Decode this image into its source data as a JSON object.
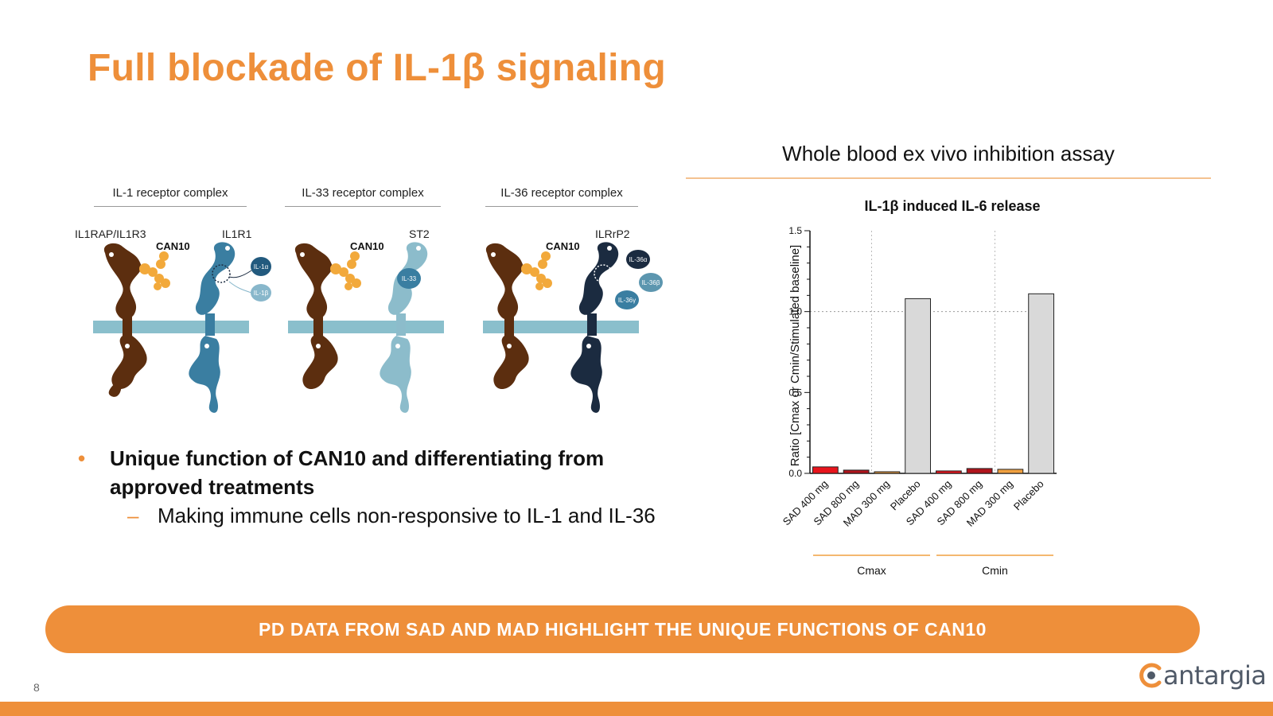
{
  "slide": {
    "title": "Full blockade of IL-1β signaling",
    "page_number": "8",
    "logo_text": "antargia"
  },
  "diagram": {
    "complexes": [
      {
        "label": "IL-1 receptor complex",
        "left_receptor": "IL1RAP/IL1R3",
        "right_receptor": "IL1R1",
        "antibody": "CAN10",
        "ligands": [
          "IL-1α",
          "IL-1β"
        ]
      },
      {
        "label": "IL-33 receptor complex",
        "right_receptor": "ST2",
        "antibody": "CAN10",
        "ligands": [
          "IL-33"
        ]
      },
      {
        "label": "IL-36 receptor complex",
        "right_receptor": "ILRrP2",
        "antibody": "CAN10",
        "ligands": [
          "IL-36α",
          "IL-36β",
          "IL-36γ"
        ]
      }
    ]
  },
  "bullets": {
    "main": "Unique function of CAN10 and differentiating from approved treatments",
    "sub": "Making immune cells non-responsive to IL-1 and IL-36"
  },
  "assay": {
    "heading": "Whole blood ex vivo inhibition assay"
  },
  "banner": {
    "text": "PD DATA FROM SAD AND MAD HIGHLIGHT THE UNIQUE FUNCTIONS OF CAN10"
  },
  "colors": {
    "accent": "#EE8F3A",
    "brown": "#5C2E0F",
    "blue": "#3A7EA1",
    "light_blue": "#8CBCCB",
    "navy": "#1B2B40",
    "membrane": "#8ABFCC",
    "gold": "#F2A93B"
  },
  "chart_data": {
    "type": "bar",
    "title": "IL-1β induced IL-6 release",
    "ylabel": "Ratio [Cmax or Cmin/Stimulated baseline]",
    "ylim": [
      0,
      1.5
    ],
    "yticks": [
      "0.0",
      "0.5",
      "1.0",
      "1.5"
    ],
    "reference_line": 1.0,
    "categories": [
      "SAD 400 mg",
      "SAD 800 mg",
      "MAD 300 mg",
      "Placebo",
      "SAD 400 mg",
      "SAD 800 mg",
      "MAD 300 mg",
      "Placebo"
    ],
    "values": [
      0.04,
      0.02,
      0.01,
      1.08,
      0.015,
      0.03,
      0.025,
      1.11
    ],
    "bar_colors": [
      "#E8141C",
      "#B0141C",
      "#F0A040",
      "#D9D9D9",
      "#E8141C",
      "#B0141C",
      "#F0A040",
      "#D9D9D9"
    ],
    "groups": [
      {
        "name": "Cmax",
        "indices": [
          0,
          1,
          2,
          3
        ]
      },
      {
        "name": "Cmin",
        "indices": [
          4,
          5,
          6,
          7
        ]
      }
    ],
    "grid": false
  }
}
